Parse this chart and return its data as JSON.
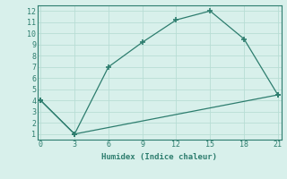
{
  "line1_x": [
    0,
    3,
    6,
    9,
    12,
    15,
    18,
    21
  ],
  "line1_y": [
    4,
    1,
    7,
    9.2,
    11.2,
    12,
    9.5,
    4.5
  ],
  "line2_x": [
    0,
    3,
    21
  ],
  "line2_y": [
    4,
    1,
    4.5
  ],
  "line_color": "#2d7d6e",
  "bg_color": "#d8f0eb",
  "grid_color": "#b8ddd5",
  "xlabel": "Humidex (Indice chaleur)",
  "xlim": [
    -0.3,
    21.3
  ],
  "ylim": [
    0.5,
    12.5
  ],
  "xticks": [
    0,
    3,
    6,
    9,
    12,
    15,
    18,
    21
  ],
  "yticks": [
    1,
    2,
    3,
    4,
    5,
    6,
    7,
    8,
    9,
    10,
    11,
    12
  ],
  "marker": "+",
  "markersize": 4,
  "markeredgewidth": 1.2,
  "linewidth": 0.9,
  "linestyle": "-"
}
